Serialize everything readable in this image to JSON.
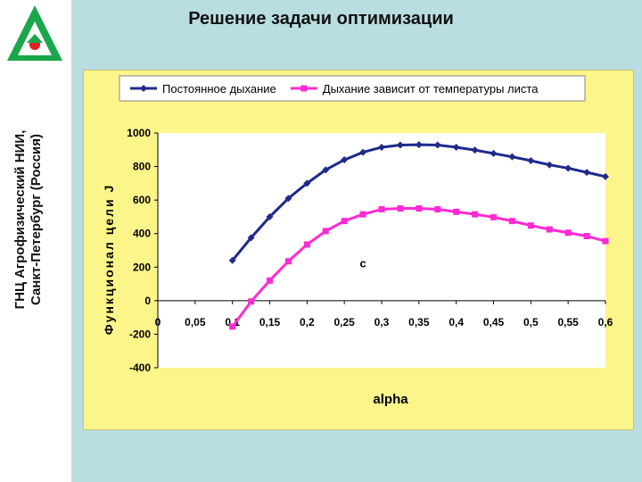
{
  "side_caption": {
    "line1": "ГНЦ Агрофизический НИИ,",
    "line2": "Санкт-Петербург (Россия)"
  },
  "title": "Решение задачи оптимизации",
  "colors": {
    "series1": "#1f2a8a",
    "series2": "#ff2ad4",
    "plot_bg": "#ffffff",
    "chart_bg": "#fbf58a",
    "slide_bg": "#b9dde0",
    "logo_green": "#1aa64a",
    "logo_red": "#e02020"
  },
  "chart_data": {
    "type": "line",
    "xlabel": "alpha",
    "ylabel": "Функционал цели J",
    "xlim": [
      0,
      0.6
    ],
    "ylim": [
      -400,
      1000
    ],
    "x_ticks": [
      "0",
      "0,05",
      "0,1",
      "0,15",
      "0,2",
      "0,25",
      "0,3",
      "0,35",
      "0,4",
      "0,45",
      "0,5",
      "0,55",
      "0,6"
    ],
    "y_ticks": [
      "1000",
      "800",
      "600",
      "400",
      "200",
      "0",
      "-200",
      "-400"
    ],
    "legend_position": "top",
    "grid": false,
    "annotation": "c",
    "series": [
      {
        "name": "Постоянное дыхание",
        "marker": "diamond",
        "x": [
          0.1,
          0.125,
          0.15,
          0.175,
          0.2,
          0.225,
          0.25,
          0.275,
          0.3,
          0.325,
          0.35,
          0.375,
          0.4,
          0.425,
          0.45,
          0.475,
          0.5,
          0.525,
          0.55,
          0.575,
          0.6
        ],
        "y": [
          240,
          375,
          500,
          610,
          700,
          780,
          840,
          885,
          915,
          928,
          930,
          928,
          915,
          898,
          878,
          858,
          835,
          810,
          790,
          765,
          740
        ]
      },
      {
        "name": "Дыхание зависит от температуры листа",
        "marker": "square",
        "x": [
          0.1,
          0.125,
          0.15,
          0.175,
          0.2,
          0.225,
          0.25,
          0.275,
          0.3,
          0.325,
          0.35,
          0.375,
          0.4,
          0.425,
          0.45,
          0.475,
          0.5,
          0.525,
          0.55,
          0.575,
          0.6
        ],
        "y": [
          -155,
          -5,
          120,
          235,
          335,
          415,
          475,
          515,
          545,
          550,
          550,
          545,
          530,
          515,
          498,
          475,
          448,
          425,
          405,
          385,
          355
        ]
      }
    ]
  }
}
